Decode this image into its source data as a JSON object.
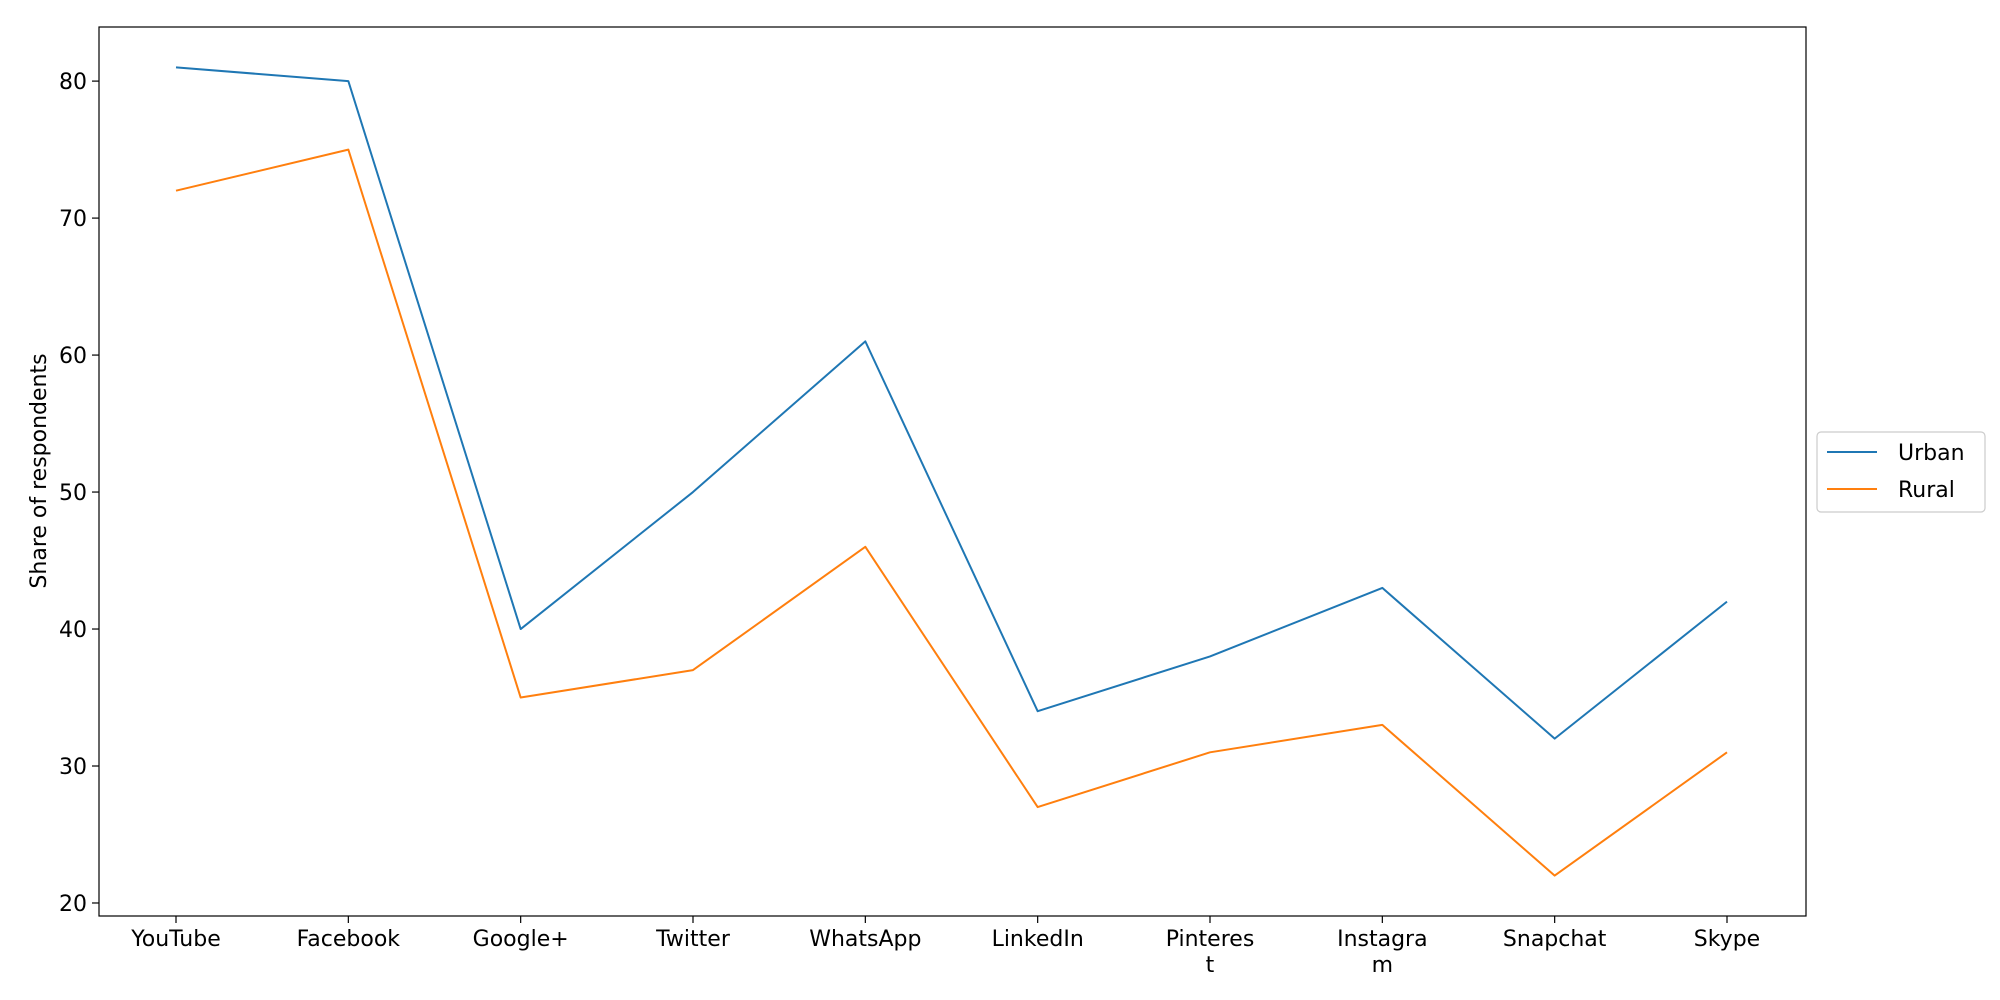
{
  "chart_data": {
    "type": "line",
    "categories": [
      "YouTube",
      "Facebook",
      "Google+",
      "Twitter",
      "WhatsApp",
      "LinkedIn",
      "Pinterest",
      "Instagram",
      "Snapchat",
      "Skype"
    ],
    "category_display": [
      [
        "YouTube"
      ],
      [
        "Facebook"
      ],
      [
        "Google+"
      ],
      [
        "Twitter"
      ],
      [
        "WhatsApp"
      ],
      [
        "LinkedIn"
      ],
      [
        "Pinteres",
        "t"
      ],
      [
        "Instagra",
        "m"
      ],
      [
        "Snapchat"
      ],
      [
        "Skype"
      ]
    ],
    "series": [
      {
        "name": "Urban",
        "color": "#1f77b4",
        "values": [
          81,
          80,
          40,
          50,
          61,
          34,
          38,
          43,
          32,
          42
        ]
      },
      {
        "name": "Rural",
        "color": "#ff7f0e",
        "values": [
          72,
          75,
          35,
          37,
          46,
          27,
          31,
          33,
          22,
          31
        ]
      }
    ],
    "title": "",
    "xlabel": "",
    "ylabel": "Share of respondents",
    "ylim": [
      19.05,
      83.95
    ],
    "yticks": [
      20,
      30,
      40,
      50,
      60,
      70,
      80
    ],
    "grid": false,
    "legend_position": "right-center-outside"
  }
}
